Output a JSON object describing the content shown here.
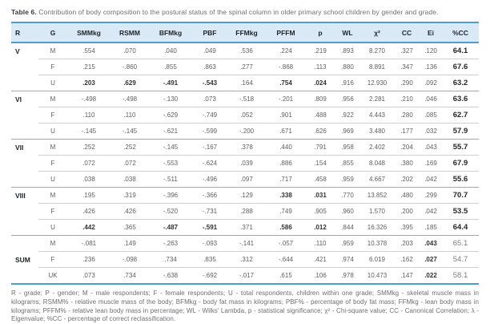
{
  "title": {
    "label": "Table 6.",
    "text": "Contribution of body composition to the postural status of the spinal column in older primary school children by gender and grade."
  },
  "table": {
    "columns": [
      "R",
      "G",
      "SMMkg",
      "RSMM",
      "BFMkg",
      "PBF",
      "FFMkg",
      "PFFM",
      "p",
      "WL",
      "χ²",
      "CC",
      "Ei",
      "%CC"
    ],
    "rows": [
      {
        "section": "V",
        "r": "V",
        "g": "M",
        "group_start": false,
        "bold": [],
        "cells": [
          ".554",
          ".070",
          ".040",
          ".049",
          ".536",
          ".224",
          ".219",
          ".893",
          "8.270",
          ".327",
          ".120",
          "64.1"
        ]
      },
      {
        "section": "V",
        "r": "",
        "g": "F",
        "group_start": false,
        "bold": [],
        "cells": [
          ".215",
          "-.860",
          ".855",
          ".863",
          ".277",
          "-.868",
          ".113",
          ".880",
          "8.891",
          ".347",
          ".136",
          "67.6"
        ]
      },
      {
        "section": "V",
        "r": "",
        "g": "U",
        "group_start": false,
        "bold": [
          0,
          1,
          2,
          3,
          5,
          6
        ],
        "cells": [
          ".203",
          ".629",
          "-.491",
          "-.543",
          ".164",
          ".754",
          ".024",
          ".916",
          "12.930",
          ".290",
          ".092",
          "63.2"
        ]
      },
      {
        "section": "VI",
        "r": "VI",
        "g": "M",
        "group_start": true,
        "bold": [],
        "cells": [
          "-.498",
          "-.498",
          "-.130",
          ".073",
          "-.518",
          "-.201",
          ".809",
          ".956",
          "2.281",
          ".210",
          ".046",
          "63.6"
        ]
      },
      {
        "section": "VI",
        "r": "",
        "g": "F",
        "group_start": false,
        "bold": [],
        "cells": [
          ".110",
          ".110",
          "-.629",
          "-.749",
          ".052",
          ".901",
          ".488",
          ".922",
          "4.443",
          ".280",
          ".085",
          "62.7"
        ]
      },
      {
        "section": "VI",
        "r": "",
        "g": "U",
        "group_start": false,
        "bold": [],
        "cells": [
          "-.145",
          "-.145",
          "-.621",
          "-.599",
          "-.200",
          ".671",
          ".626",
          ".969",
          "3.480",
          ".177",
          ".032",
          "57.9"
        ]
      },
      {
        "section": "VII",
        "r": "VII",
        "g": "M",
        "group_start": true,
        "bold": [],
        "cells": [
          ".252",
          ".252",
          "-.145",
          "-.167",
          ".378",
          ".440",
          ".791",
          ".958",
          "2.402",
          ".204",
          ".043",
          "55.7"
        ]
      },
      {
        "section": "VII",
        "r": "",
        "g": "F",
        "group_start": false,
        "bold": [],
        "cells": [
          ".072",
          ".072",
          "-.553",
          "-.624",
          ".039",
          ".886",
          ".154",
          ".855",
          "8.048",
          ".380",
          ".169",
          "67.9"
        ]
      },
      {
        "section": "VII",
        "r": "",
        "g": "U",
        "group_start": false,
        "bold": [],
        "cells": [
          ".038",
          ".038",
          "-.511",
          "-.496",
          ".097",
          ".717",
          ".458",
          ".959",
          "4.667",
          ".202",
          ".042",
          "55.6"
        ]
      },
      {
        "section": "VIII",
        "r": "VIII",
        "g": "M",
        "group_start": true,
        "bold": [
          5,
          6
        ],
        "cells": [
          ".195",
          ".319",
          "-.396",
          "-.366",
          ".129",
          ".338",
          ".031",
          ".770",
          "13.852",
          ".480",
          ".299",
          "70.7"
        ]
      },
      {
        "section": "VIII",
        "r": "",
        "g": "F",
        "group_start": false,
        "bold": [],
        "cells": [
          ".426",
          ".426",
          "-.520",
          "-.731",
          ".288",
          ".749",
          ".905",
          ".960",
          "1.570",
          ".200",
          ".042",
          "53.5"
        ]
      },
      {
        "section": "VIII",
        "r": "",
        "g": "U",
        "group_start": false,
        "bold": [
          0,
          2,
          3,
          5,
          6
        ],
        "cells": [
          ".442",
          ".365",
          "-.487",
          "-.591",
          ".371",
          ".586",
          ".012",
          ".844",
          "16.326",
          ".395",
          ".185",
          "64.4"
        ]
      },
      {
        "section": "SUM",
        "r": "",
        "g": "M",
        "group_start": true,
        "bold": [
          10
        ],
        "cells": [
          "-.081",
          ".149",
          "-.263",
          "-.093",
          "-.141",
          "-.057",
          ".110",
          ".959",
          "10.378",
          ".203",
          ".043",
          "65.1"
        ]
      },
      {
        "section": "SUM",
        "r": "SUM",
        "g": "F",
        "group_start": false,
        "bold": [
          10
        ],
        "cells": [
          ".236",
          "-.098",
          ".734",
          ".835",
          ".312",
          "-.644",
          ".421",
          ".974",
          "6.019",
          ".162",
          ".027",
          "54.7"
        ]
      },
      {
        "section": "SUM",
        "r": "",
        "g": "UK",
        "group_start": false,
        "bold": [
          10
        ],
        "cells": [
          ".073",
          ".734",
          "-.638",
          "-.692",
          "-.017",
          ".615",
          ".106",
          ".978",
          "10.473",
          ".147",
          ".022",
          "58.1"
        ]
      }
    ]
  },
  "footnote": "R - grade; P - gender; M - male respondents; F - female respondents; U - total respondents, children within one grade; SMMkg - skeletal muscle mass in kilograms; RSMM% - relative muscle mass of the body; BFMkg - body fat mass in kilograms; PBF% - percentage of body fat mass; FFMkg - lean body mass in kilograms; PFFM% - relative lean body mass in percentage; WL - Wilks' Lambda, p - statistical significance; χ² - Chi-square value; CC - Canonical Correlation; λ - Eigenvalue; %CC - percentage of correct reclassification."
}
